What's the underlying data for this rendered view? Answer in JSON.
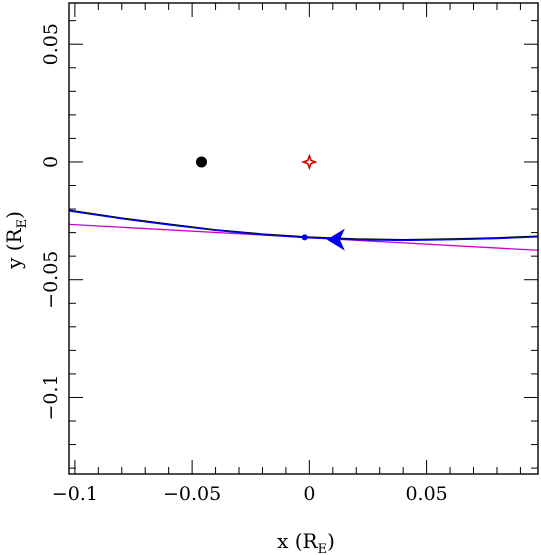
{
  "chart_data": {
    "type": "line",
    "xlabel": {
      "main": "x (R",
      "sub": "E",
      "close": ")"
    },
    "ylabel": {
      "main": "y (R",
      "sub": "E",
      "close": ")"
    },
    "xlim": [
      -0.1025,
      0.0975
    ],
    "ylim": [
      -0.1325,
      0.0675
    ],
    "xticks": [
      -0.1,
      -0.05,
      0,
      0.05
    ],
    "xtick_labels": [
      "−0.1",
      "−0.05",
      "0",
      "0.05"
    ],
    "yticks": [
      -0.1,
      -0.05,
      0,
      0.05
    ],
    "ytick_labels": [
      "−0.1",
      "−0.05",
      "0",
      "0.05"
    ],
    "grid": false,
    "series": [
      {
        "color": "#cc00cc",
        "x": [
          -0.1025,
          0.0975
        ],
        "y": [
          -0.0265,
          -0.0375
        ]
      },
      {
        "color": "#000000",
        "x": [
          -0.1025,
          -0.08,
          -0.06,
          -0.04,
          -0.02,
          0.0,
          0.02,
          0.04,
          0.06,
          0.08,
          0.0975
        ],
        "y": [
          -0.0205,
          -0.0238,
          -0.0264,
          -0.0288,
          -0.0306,
          -0.0319,
          -0.0327,
          -0.033,
          -0.0327,
          -0.0322,
          -0.0315
        ]
      },
      {
        "color": "#0000ee",
        "x": [
          -0.1025,
          -0.08,
          -0.06,
          -0.04,
          -0.02,
          0.0,
          0.02,
          0.04,
          0.06,
          0.08,
          0.0975
        ],
        "y": [
          -0.0208,
          -0.0241,
          -0.0267,
          -0.029,
          -0.0309,
          -0.0322,
          -0.033,
          -0.0333,
          -0.033,
          -0.0325,
          -0.0318
        ]
      }
    ],
    "markers": [
      {
        "kind": "black-dot",
        "color": "#000000",
        "x": -0.046,
        "y": 0.0
      },
      {
        "kind": "red-star",
        "color": "#cc0000",
        "x": 0.0,
        "y": 0.0
      },
      {
        "kind": "blue-dot",
        "color": "#0000ee",
        "x": -0.002,
        "y": -0.032
      },
      {
        "kind": "direction-arrow",
        "color": "#0000ee",
        "x": 0.013,
        "y": -0.033,
        "direction": "left"
      }
    ]
  }
}
